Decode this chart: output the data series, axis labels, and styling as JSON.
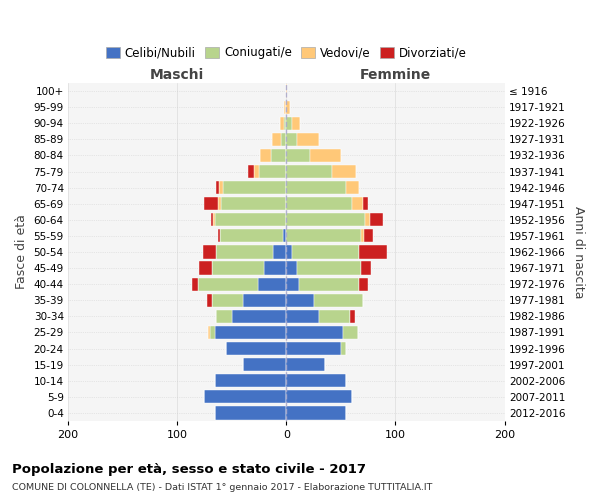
{
  "age_groups_bottom_to_top": [
    "0-4",
    "5-9",
    "10-14",
    "15-19",
    "20-24",
    "25-29",
    "30-34",
    "35-39",
    "40-44",
    "45-49",
    "50-54",
    "55-59",
    "60-64",
    "65-69",
    "70-74",
    "75-79",
    "80-84",
    "85-89",
    "90-94",
    "95-99",
    "100+"
  ],
  "birth_years_bottom_to_top": [
    "2012-2016",
    "2007-2011",
    "2002-2006",
    "1997-2001",
    "1992-1996",
    "1987-1991",
    "1982-1986",
    "1977-1981",
    "1972-1976",
    "1967-1971",
    "1962-1966",
    "1957-1961",
    "1952-1956",
    "1947-1951",
    "1942-1946",
    "1937-1941",
    "1932-1936",
    "1927-1931",
    "1922-1926",
    "1917-1921",
    "≤ 1916"
  ],
  "maschi": {
    "celibi": [
      65,
      75,
      65,
      40,
      55,
      65,
      50,
      40,
      26,
      20,
      12,
      3,
      0,
      0,
      0,
      0,
      0,
      0,
      0,
      0,
      0
    ],
    "coniugati": [
      0,
      0,
      0,
      0,
      0,
      5,
      14,
      28,
      55,
      48,
      52,
      58,
      65,
      60,
      58,
      25,
      14,
      5,
      2,
      0,
      0
    ],
    "vedovi": [
      0,
      0,
      0,
      0,
      0,
      2,
      0,
      0,
      0,
      0,
      0,
      0,
      2,
      3,
      4,
      5,
      10,
      8,
      4,
      2,
      0
    ],
    "divorziati": [
      0,
      0,
      0,
      0,
      0,
      0,
      0,
      5,
      5,
      12,
      12,
      2,
      2,
      12,
      2,
      5,
      0,
      0,
      0,
      0,
      0
    ]
  },
  "femmine": {
    "nubili": [
      55,
      60,
      55,
      35,
      50,
      52,
      30,
      25,
      12,
      10,
      5,
      0,
      0,
      0,
      0,
      0,
      0,
      0,
      0,
      0,
      0
    ],
    "coniugate": [
      0,
      0,
      0,
      0,
      5,
      14,
      28,
      45,
      55,
      58,
      62,
      68,
      72,
      60,
      55,
      42,
      22,
      10,
      5,
      0,
      0
    ],
    "vedove": [
      0,
      0,
      0,
      0,
      0,
      0,
      0,
      0,
      0,
      0,
      0,
      3,
      5,
      10,
      12,
      22,
      28,
      20,
      8,
      3,
      1
    ],
    "divorziate": [
      0,
      0,
      0,
      0,
      0,
      0,
      5,
      0,
      8,
      10,
      25,
      8,
      12,
      5,
      0,
      0,
      0,
      0,
      0,
      0,
      0
    ]
  },
  "colors": {
    "celibi_nubili": "#4472c4",
    "coniugati": "#b8d48d",
    "vedovi": "#ffc878",
    "divorziati": "#cc2020"
  },
  "xlim": 200,
  "xticks": [
    -200,
    -100,
    0,
    100,
    200
  ],
  "xticklabels": [
    "200",
    "100",
    "0",
    "100",
    "200"
  ],
  "title": "Popolazione per età, sesso e stato civile - 2017",
  "subtitle": "COMUNE DI COLONNELLA (TE) - Dati ISTAT 1° gennaio 2017 - Elaborazione TUTTITALIA.IT",
  "ylabel": "Fasce di età",
  "ylabel_right": "Anni di nascita",
  "label_maschi": "Maschi",
  "label_femmine": "Femmine",
  "legend_labels": [
    "Celibi/Nubili",
    "Coniugati/e",
    "Vedovi/e",
    "Divorziati/e"
  ],
  "bg_color": "#ffffff",
  "plot_bg": "#f5f5f5",
  "grid_color": "#cccccc"
}
